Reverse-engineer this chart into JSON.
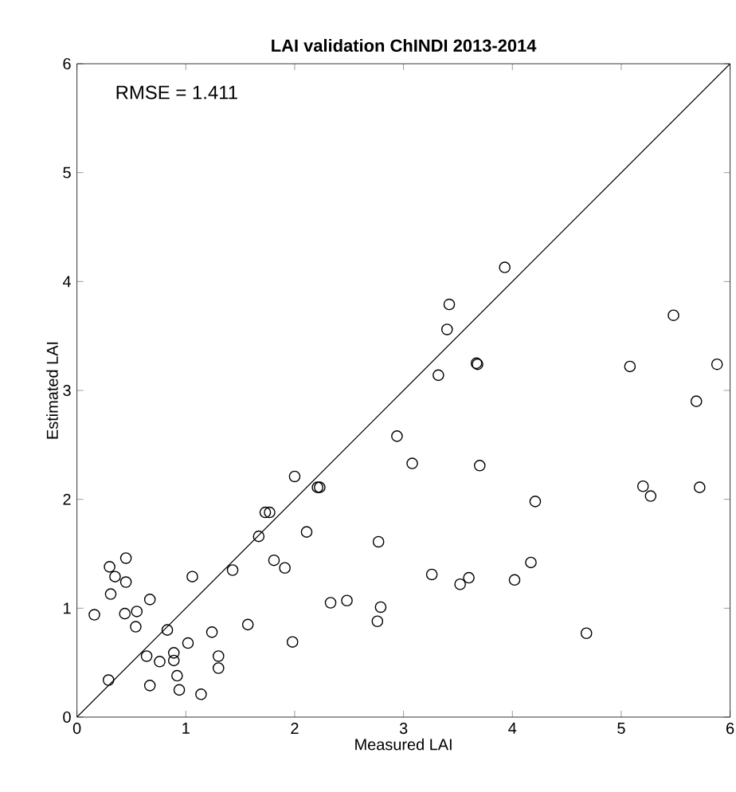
{
  "chart_data": {
    "type": "scatter",
    "title": "LAI validation   ChINDI 2013-2014",
    "xlabel": "Measured LAI",
    "ylabel": "Estimated LAI",
    "annotations": [
      "RMSE = 1.411"
    ],
    "xlim": [
      0,
      6
    ],
    "ylim": [
      0,
      6
    ],
    "xticks": [
      0,
      1,
      2,
      3,
      4,
      5,
      6
    ],
    "yticks": [
      0,
      1,
      2,
      3,
      4,
      5,
      6
    ],
    "marker": "circle",
    "series": [
      {
        "color": "#000000",
        "x": [
          0.16,
          0.29,
          0.3,
          0.31,
          0.35,
          0.45,
          0.45,
          0.44,
          0.55,
          0.54,
          0.67,
          0.64,
          0.67,
          0.76,
          0.83,
          0.89,
          0.89,
          0.92,
          0.94,
          1.02,
          1.06,
          1.14,
          1.24,
          1.3,
          1.3,
          1.43,
          1.57,
          1.67,
          1.73,
          1.77,
          1.81,
          1.91,
          1.98,
          2.0,
          2.11,
          2.21,
          2.23,
          2.33,
          2.48,
          2.76,
          2.77,
          2.79,
          3.93,
          3.42,
          3.4,
          3.67,
          3.68,
          3.32,
          2.94,
          3.08,
          3.7,
          4.21,
          3.26,
          3.52,
          3.6,
          4.02,
          4.17,
          4.68,
          5.48,
          5.08,
          5.69,
          5.2,
          5.27,
          5.72,
          5.88
        ],
        "values": [
          0.94,
          0.34,
          1.38,
          1.13,
          1.29,
          1.46,
          1.24,
          0.95,
          0.97,
          0.83,
          1.08,
          0.56,
          0.29,
          0.51,
          0.8,
          0.59,
          0.52,
          0.38,
          0.25,
          0.68,
          1.29,
          0.21,
          0.78,
          0.56,
          0.45,
          1.35,
          0.85,
          1.66,
          1.88,
          1.88,
          1.44,
          1.37,
          0.69,
          2.21,
          1.7,
          2.11,
          2.11,
          1.05,
          1.07,
          0.88,
          1.61,
          1.01,
          4.13,
          3.79,
          3.56,
          3.25,
          3.24,
          3.14,
          2.58,
          2.33,
          2.31,
          1.98,
          1.31,
          1.22,
          1.28,
          1.26,
          1.42,
          0.77,
          3.69,
          3.22,
          2.9,
          2.12,
          2.03,
          2.11,
          3.24
        ]
      },
      {
        "type": "line",
        "color": "#000000",
        "marker": "none",
        "x": [
          0,
          6
        ],
        "values": [
          0,
          6
        ]
      }
    ]
  }
}
